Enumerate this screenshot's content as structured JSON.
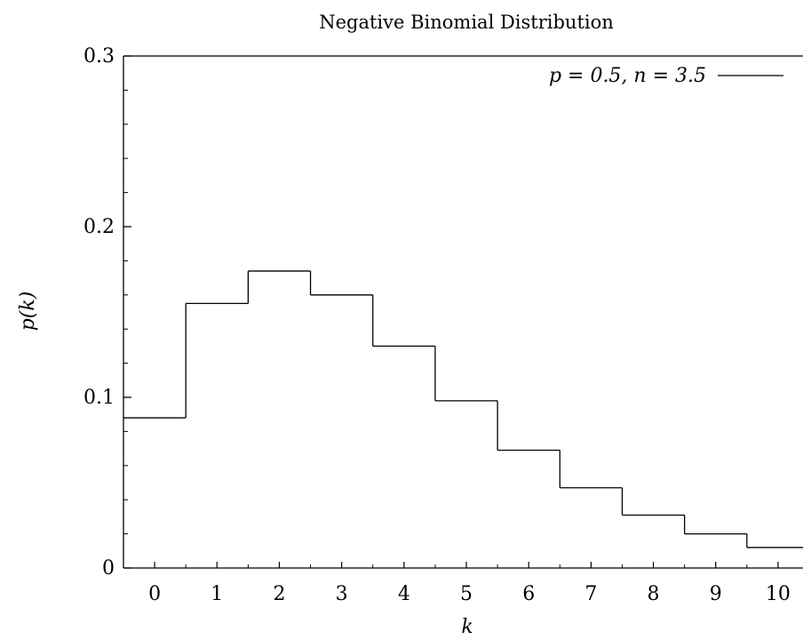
{
  "chart_data": {
    "type": "line",
    "style": "step",
    "title": "Negative Binomial Distribution",
    "xlabel": "k",
    "ylabel": "p(k)",
    "xlim": [
      -0.5,
      10.4
    ],
    "ylim": [
      0,
      0.3
    ],
    "xticks": [
      0,
      1,
      2,
      3,
      4,
      5,
      6,
      7,
      8,
      9,
      10
    ],
    "yticks": [
      {
        "value": 0,
        "label": "0"
      },
      {
        "value": 0.1,
        "label": "0.1"
      },
      {
        "value": 0.2,
        "label": "0.2"
      },
      {
        "value": 0.3,
        "label": "0.3"
      }
    ],
    "grid": false,
    "legend_position": "top-right",
    "series": [
      {
        "name": "p = 0.5, n = 3.5",
        "x": [
          0,
          1,
          2,
          3,
          4,
          5,
          6,
          7,
          8,
          9,
          10
        ],
        "values": [
          0.088,
          0.155,
          0.174,
          0.16,
          0.13,
          0.098,
          0.069,
          0.047,
          0.031,
          0.02,
          0.012
        ],
        "color": "#000000"
      }
    ]
  }
}
